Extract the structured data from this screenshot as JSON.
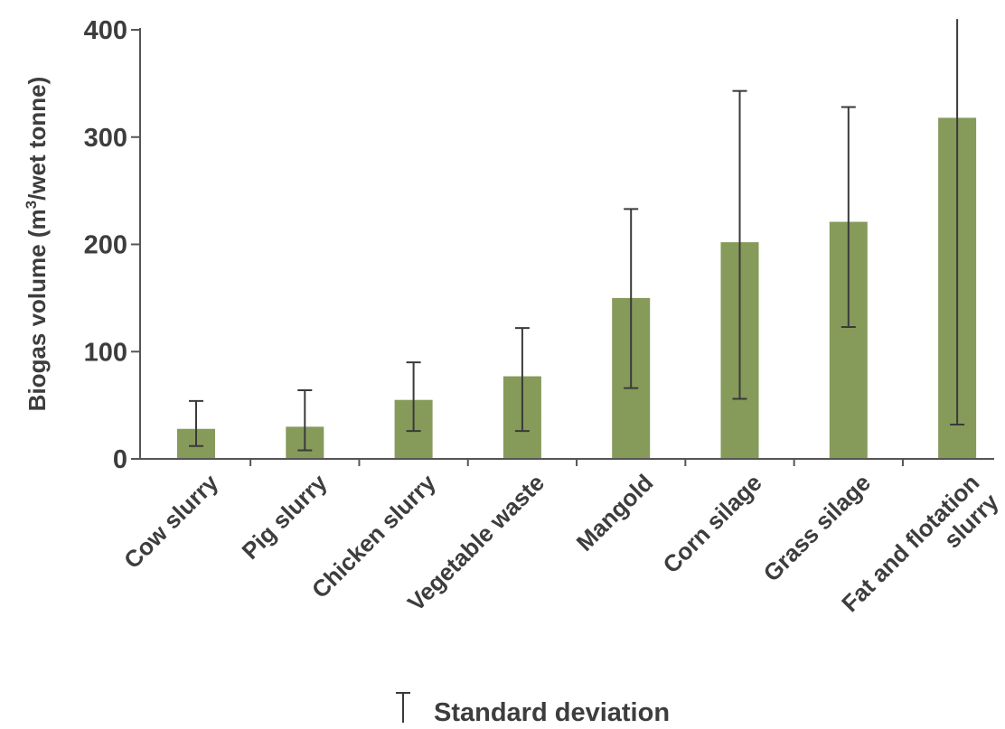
{
  "chart_data": {
    "type": "bar",
    "categories": [
      [
        "Cow slurry"
      ],
      [
        "Pig slurry"
      ],
      [
        "Chicken slurry"
      ],
      [
        "Vegetable waste"
      ],
      [
        "Mangold"
      ],
      [
        "Corn silage"
      ],
      [
        "Grass silage"
      ],
      [
        "Fat and flotation",
        "slurry"
      ]
    ],
    "series": [
      {
        "values": [
          28,
          30,
          55,
          77,
          150,
          202,
          221,
          318
        ],
        "error_low": [
          12,
          8,
          26,
          26,
          66,
          56,
          123,
          32
        ],
        "error_high": [
          54,
          64,
          90,
          122,
          233,
          343,
          328,
          410
        ],
        "color": "#869a5a"
      }
    ],
    "ylabel": "Biogas volume (m³/wet tonne)",
    "ylabel_parts": {
      "before": "Biogas volume (m",
      "sup": "3",
      "after": "/wet tonne)"
    },
    "ylim": [
      0,
      400
    ],
    "yticks": [
      0,
      100,
      200,
      300,
      400
    ],
    "legend": {
      "label": "Standard deviation",
      "placement": "bottom-center"
    },
    "grid": false,
    "colors": {
      "bar": "#869a5a",
      "axis": "#555555",
      "error_bar": "#3a3a3a",
      "text": "#3d3d3d"
    }
  }
}
